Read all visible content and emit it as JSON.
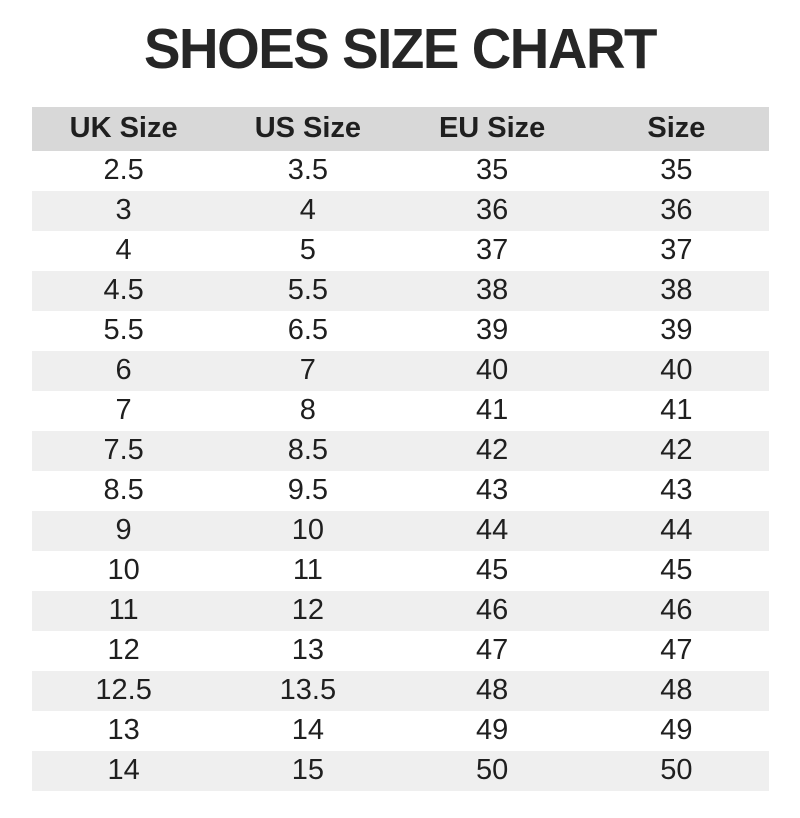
{
  "title": "SHOES SIZE CHART",
  "chart_data": {
    "type": "table",
    "title": "SHOES SIZE CHART",
    "columns": [
      "UK Size",
      "US Size",
      "EU Size",
      "Size"
    ],
    "rows": [
      [
        "2.5",
        "3.5",
        "35",
        "35"
      ],
      [
        "3",
        "4",
        "36",
        "36"
      ],
      [
        "4",
        "5",
        "37",
        "37"
      ],
      [
        "4.5",
        "5.5",
        "38",
        "38"
      ],
      [
        "5.5",
        "6.5",
        "39",
        "39"
      ],
      [
        "6",
        "7",
        "40",
        "40"
      ],
      [
        "7",
        "8",
        "41",
        "41"
      ],
      [
        "7.5",
        "8.5",
        "42",
        "42"
      ],
      [
        "8.5",
        "9.5",
        "43",
        "43"
      ],
      [
        "9",
        "10",
        "44",
        "44"
      ],
      [
        "10",
        "11",
        "45",
        "45"
      ],
      [
        "11",
        "12",
        "46",
        "46"
      ],
      [
        "12",
        "13",
        "47",
        "47"
      ],
      [
        "12.5",
        "13.5",
        "48",
        "48"
      ],
      [
        "13",
        "14",
        "49",
        "49"
      ],
      [
        "14",
        "15",
        "50",
        "50"
      ]
    ],
    "layout": {
      "row_striping": "even rows shaded",
      "grid": "off",
      "alignment": "center"
    }
  },
  "colors": {
    "page_bg": "#ffffff",
    "title_text": "#262626",
    "header_bg": "#d8d8d8",
    "row_stripe_bg": "#efefef",
    "row_plain_bg": "#ffffff",
    "text": "#1f1f1f"
  }
}
